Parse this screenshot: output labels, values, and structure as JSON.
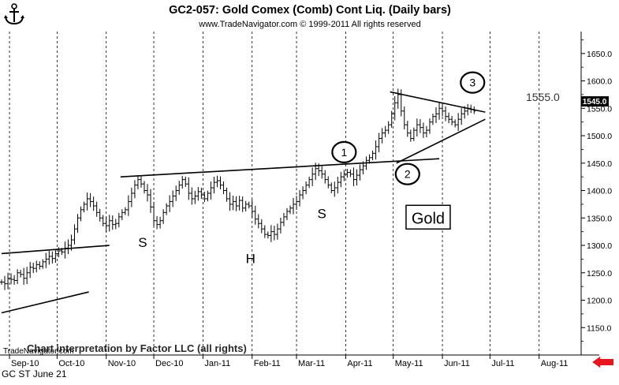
{
  "header": {
    "title": "GC2-057:  Gold Comex (Comb) Cont Liq.  (Daily bars)",
    "copyright": "www.TradeNavigator.com © 1999-2011 All rights reserved"
  },
  "footer": {
    "label": "GC ST June 21",
    "watermark": "TradeNavigator.com",
    "credit": "Chart interpretation by Factor LLC (all rights)"
  },
  "colors": {
    "bar": "#000000",
    "grid": "#000000",
    "arrow": "#e8141e",
    "background": "#ffffff"
  },
  "icons": {
    "logo": "ship-anchor-icon",
    "scroll_arrow": "left-arrow-icon"
  },
  "chart_data": {
    "type": "ohlc",
    "x_axis": {
      "ticks": [
        "Sep-10",
        "Oct-10",
        "Nov-10",
        "Dec-10",
        "Jan-11",
        "Feb-11",
        "Mar-11",
        "Apr-11",
        "May-11",
        "Jun-11",
        "Jul-11",
        "Aug-11"
      ]
    },
    "y_axis": {
      "scale": "linear",
      "range": [
        1100,
        1690
      ],
      "ticks": [
        1150,
        1200,
        1250,
        1300,
        1350,
        1400,
        1450,
        1500,
        1550,
        1600,
        1650
      ]
    },
    "grid": "vertical dashed at month boundaries",
    "last_price": "1545.0",
    "price_label": "1555.0",
    "closes": [
      1233,
      1230,
      1240,
      1238,
      1236,
      1250,
      1247,
      1240,
      1250,
      1260,
      1258,
      1265,
      1262,
      1270,
      1275,
      1280,
      1276,
      1285,
      1290,
      1288,
      1295,
      1300,
      1310,
      1330,
      1350,
      1365,
      1375,
      1385,
      1380,
      1372,
      1360,
      1350,
      1340,
      1336,
      1345,
      1338,
      1340,
      1352,
      1360,
      1365,
      1380,
      1395,
      1410,
      1420,
      1412,
      1400,
      1392,
      1370,
      1345,
      1338,
      1345,
      1360,
      1372,
      1380,
      1390,
      1400,
      1410,
      1420,
      1412,
      1395,
      1385,
      1390,
      1398,
      1392,
      1385,
      1395,
      1405,
      1415,
      1418,
      1410,
      1400,
      1385,
      1375,
      1380,
      1372,
      1382,
      1368,
      1375,
      1372,
      1362,
      1348,
      1340,
      1330,
      1320,
      1318,
      1325,
      1320,
      1330,
      1342,
      1352,
      1362,
      1368,
      1375,
      1380,
      1392,
      1400,
      1410,
      1420,
      1430,
      1440,
      1436,
      1430,
      1420,
      1410,
      1400,
      1405,
      1415,
      1425,
      1430,
      1433,
      1430,
      1420,
      1428,
      1438,
      1445,
      1455,
      1460,
      1468,
      1480,
      1495,
      1505,
      1510,
      1520,
      1540,
      1560,
      1575,
      1545,
      1520,
      1505,
      1495,
      1510,
      1520,
      1515,
      1505,
      1510,
      1525,
      1535,
      1540,
      1550,
      1545,
      1535,
      1530,
      1525,
      1520,
      1530,
      1540,
      1545,
      1550,
      1548,
      1545
    ],
    "series_range": {
      "start_date": "2010-08-27",
      "end_date": "2011-06-21"
    },
    "trendlines": [
      {
        "name": "left-channel-upper",
        "from": [
          "2010-08-27",
          1285
        ],
        "to": [
          "2010-11-03",
          1300
        ]
      },
      {
        "name": "left-channel-lower",
        "from": [
          "2010-08-27",
          1177
        ],
        "to": [
          "2010-10-21",
          1215
        ]
      },
      {
        "name": "neckline",
        "from": [
          "2010-11-10",
          1425
        ],
        "to": [
          "2011-05-30",
          1458
        ]
      },
      {
        "name": "triangle-upper",
        "from": [
          "2011-04-29",
          1580
        ],
        "to": [
          "2011-06-28",
          1543
        ]
      },
      {
        "name": "triangle-lower",
        "from": [
          "2011-05-03",
          1450
        ],
        "to": [
          "2011-06-28",
          1530
        ]
      }
    ],
    "annotations": [
      {
        "text": "S",
        "date": "2010-11-24",
        "price": 1297,
        "style": "letter"
      },
      {
        "text": "H",
        "date": "2011-01-31",
        "price": 1268,
        "style": "letter"
      },
      {
        "text": "S",
        "date": "2011-03-17",
        "price": 1350,
        "style": "letter"
      },
      {
        "text": "1",
        "date": "2011-03-31",
        "price": 1470,
        "style": "circle"
      },
      {
        "text": "2",
        "date": "2011-05-10",
        "price": 1430,
        "style": "circle"
      },
      {
        "text": "3",
        "date": "2011-06-20",
        "price": 1597,
        "style": "circle"
      },
      {
        "text": "Gold",
        "date": "2011-05-23",
        "price": 1350,
        "style": "box"
      }
    ]
  }
}
